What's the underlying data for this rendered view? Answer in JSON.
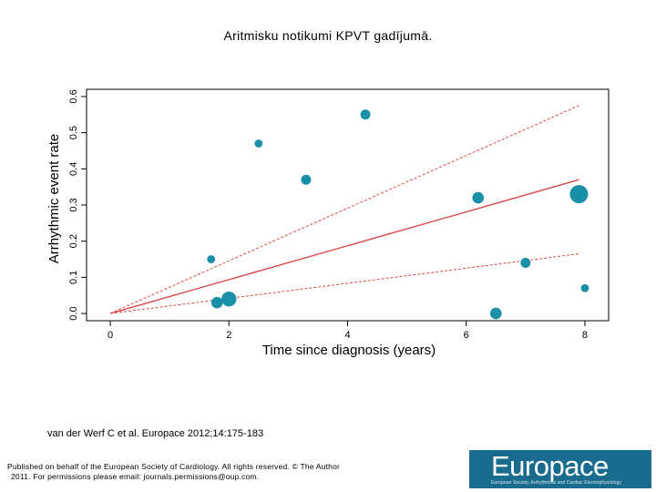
{
  "slide": {
    "title": "Aritmisku notikumi KPVT gadījumā.",
    "citation": "van der Werf C et al. Europace 2012;14:175-183",
    "footer_line1": "Published on behalf of the European Society of Cardiology. All rights reserved. © The Author",
    "footer_line2": "2011. For permissions please email: journals.permissions@oup.com.",
    "logo_text": "Europace",
    "logo_subtitle": "European Society, Arrhythmias and Cardiac Electrophysiology"
  },
  "chart_data": {
    "type": "scatter",
    "xlabel": "Time since diagnosis (years)",
    "ylabel": "Arrhythmic event rate",
    "xlim": [
      -0.4,
      8.4
    ],
    "ylim": [
      -0.02,
      0.62
    ],
    "x_ticks": [
      0,
      2,
      4,
      6,
      8
    ],
    "y_ticks": [
      0.0,
      0.1,
      0.2,
      0.3,
      0.4,
      0.5,
      0.6
    ],
    "grid": false,
    "point_color": "#1a8fa8",
    "line_color": "#d94848",
    "points": [
      {
        "x": 1.7,
        "y": 0.15,
        "weight": 1
      },
      {
        "x": 1.8,
        "y": 0.03,
        "weight": 3
      },
      {
        "x": 2.0,
        "y": 0.04,
        "weight": 6
      },
      {
        "x": 2.5,
        "y": 0.47,
        "weight": 1
      },
      {
        "x": 3.3,
        "y": 0.37,
        "weight": 2
      },
      {
        "x": 4.3,
        "y": 0.55,
        "weight": 2
      },
      {
        "x": 6.2,
        "y": 0.32,
        "weight": 3
      },
      {
        "x": 6.5,
        "y": 0.0,
        "weight": 3
      },
      {
        "x": 7.0,
        "y": 0.14,
        "weight": 2
      },
      {
        "x": 7.9,
        "y": 0.33,
        "weight": 10
      },
      {
        "x": 8.0,
        "y": 0.07,
        "weight": 1
      }
    ],
    "fit_line": {
      "x": [
        0,
        7.9
      ],
      "y": [
        0,
        0.37
      ]
    },
    "ci_upper": {
      "x": [
        0,
        7.9
      ],
      "y": [
        0,
        0.575
      ]
    },
    "ci_lower": {
      "x": [
        0,
        7.9
      ],
      "y": [
        0,
        0.165
      ]
    }
  }
}
